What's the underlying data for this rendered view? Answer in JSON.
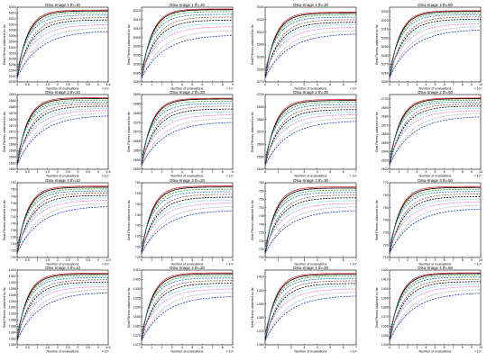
{
  "figure": {
    "ylabel": "Best Fitness obtained so far",
    "xlabel": "Number of evaluations",
    "x_exponent": "× 10⁴",
    "series_colors": [
      "#d62728",
      "#000000",
      "#2ca02c",
      "#1f77b4",
      "#8c564b",
      "#000000",
      "#17becf",
      "#e377c2",
      "#7f7f7f",
      "#1f3fbf"
    ],
    "series_styles": [
      "solid",
      "solid",
      "dash",
      "dash",
      "dash",
      "dash",
      "dot",
      "dash",
      "dot",
      "dash"
    ]
  },
  "chart_data": [
    {
      "type": "line",
      "title": "Otsu-Image 1 th=10",
      "xlim": [
        0,
        4.5
      ],
      "ylim": [
        5290,
        5316
      ],
      "xticks": [
        0,
        0.5,
        1,
        1.5,
        2,
        2.5,
        3,
        3.5,
        4,
        4.5
      ],
      "xticklabels": [
        "0",
        "0.5",
        "1",
        "1.5",
        "2",
        "2.5",
        "3",
        "3.5",
        "4",
        "4.5"
      ],
      "yticks": [
        5290,
        5292,
        5294,
        5296,
        5298,
        5300,
        5302,
        5304,
        5306,
        5308,
        5310,
        5312,
        5314,
        5316
      ],
      "yticklabels": [
        "5290",
        "5292",
        "5294",
        "5296",
        "5298",
        "5300",
        "5302",
        "5304",
        "5306",
        "5308",
        "5310",
        "5312",
        "5314",
        "5316"
      ],
      "final": [
        5315.0,
        5314.7,
        5314.1,
        5313.3,
        5312.4,
        5311.6,
        5310.8,
        5310.0,
        5309.0,
        5307.8
      ]
    },
    {
      "type": "line",
      "title": "Otsu-Image 1 th=20",
      "xlim": [
        0,
        9
      ],
      "ylim": [
        5280,
        5322
      ],
      "xticks": [
        0,
        1,
        2,
        3,
        4,
        5,
        6,
        7,
        8,
        9
      ],
      "xticklabels": [
        "0",
        "1",
        "2",
        "3",
        "4",
        "5",
        "6",
        "7",
        "8",
        "9"
      ],
      "yticks": [
        5280,
        5285,
        5290,
        5295,
        5300,
        5305,
        5310,
        5315,
        5320
      ],
      "yticklabels": [
        "5280",
        "5285",
        "5290",
        "5295",
        "5300",
        "5305",
        "5310",
        "5315",
        "5320"
      ],
      "final": [
        5321.0,
        5320.6,
        5319.5,
        5318.0,
        5316.5,
        5314.8,
        5313.0,
        5311.2,
        5309.0,
        5306.5
      ]
    },
    {
      "type": "line",
      "title": "Otsu-Image 1 th=30",
      "xlim": [
        0,
        7
      ],
      "ylim": [
        5270,
        5330
      ],
      "xticks": [
        0,
        1,
        2,
        3,
        4,
        5,
        6,
        7
      ],
      "xticklabels": [
        "0",
        "1",
        "2",
        "3",
        "4",
        "5",
        "6",
        "7"
      ],
      "yticks": [
        5270,
        5280,
        5290,
        5300,
        5310,
        5320,
        5330
      ],
      "yticklabels": [
        "5270",
        "5280",
        "5290",
        "5300",
        "5310",
        "5320",
        "5330"
      ],
      "final": [
        5326.0,
        5325.2,
        5323.8,
        5322.0,
        5320.0,
        5318.0,
        5316.2,
        5314.0,
        5311.5,
        5309.0
      ]
    },
    {
      "type": "line",
      "title": "Otsu-Image 1 th=50",
      "xlim": [
        0,
        10
      ],
      "ylim": [
        5250,
        5335
      ],
      "xticks": [
        0,
        1,
        2,
        3,
        4,
        5,
        6,
        7,
        8,
        9,
        10
      ],
      "xticklabels": [
        "0",
        "1",
        "2",
        "3",
        "4",
        "5",
        "6",
        "7",
        "8",
        "9",
        "10"
      ],
      "yticks": [
        5250,
        5260,
        5270,
        5280,
        5290,
        5300,
        5310,
        5320,
        5330
      ],
      "yticklabels": [
        "5250",
        "5260",
        "5270",
        "5280",
        "5290",
        "5300",
        "5310",
        "5320",
        "5330"
      ],
      "final": [
        5331.0,
        5330.2,
        5328.5,
        5326.5,
        5324.0,
        5321.5,
        5319.0,
        5316.5,
        5313.5,
        5310.0
      ]
    },
    {
      "type": "line",
      "title": "Otsu-Image 2 th=10",
      "xlim": [
        0,
        4.5
      ],
      "ylim": [
        2660,
        2684
      ],
      "xticks": [
        0,
        0.5,
        1,
        1.5,
        2,
        2.5,
        3,
        3.5,
        4,
        4.5
      ],
      "xticklabels": [
        "0",
        "0.5",
        "1",
        "1.5",
        "2",
        "2.5",
        "3",
        "3.5",
        "4",
        "4.5"
      ],
      "yticks": [
        2660,
        2662,
        2664,
        2666,
        2668,
        2670,
        2672,
        2674,
        2676,
        2678,
        2680,
        2682,
        2684
      ],
      "yticklabels": [
        "2660",
        "2662",
        "2664",
        "2666",
        "2668",
        "2670",
        "2672",
        "2674",
        "2676",
        "2678",
        "2680",
        "2682",
        "2684"
      ],
      "final": [
        2683.0,
        2682.7,
        2682.2,
        2681.6,
        2681.0,
        2680.3,
        2679.6,
        2679.0,
        2678.2,
        2677.4
      ]
    },
    {
      "type": "line",
      "title": "Otsu-Image 2 th=20",
      "xlim": [
        0,
        9
      ],
      "ylim": [
        2650,
        2690
      ],
      "xticks": [
        0,
        1,
        2,
        3,
        4,
        5,
        6,
        7,
        8,
        9
      ],
      "xticklabels": [
        "0",
        "1",
        "2",
        "3",
        "4",
        "5",
        "6",
        "7",
        "8",
        "9"
      ],
      "yticks": [
        2650,
        2655,
        2660,
        2665,
        2670,
        2675,
        2680,
        2685,
        2690
      ],
      "yticklabels": [
        "2650",
        "2655",
        "2660",
        "2665",
        "2670",
        "2675",
        "2680",
        "2685",
        "2690"
      ],
      "final": [
        2688.0,
        2687.6,
        2686.5,
        2685.2,
        2683.8,
        2682.3,
        2680.8,
        2679.3,
        2677.6,
        2675.5
      ]
    },
    {
      "type": "line",
      "title": "Otsu-Image 2 th=30",
      "xlim": [
        0,
        7
      ],
      "ylim": [
        2640,
        2700
      ],
      "xticks": [
        0,
        1,
        2,
        3,
        4,
        5,
        6,
        7
      ],
      "xticklabels": [
        "0",
        "1",
        "2",
        "3",
        "4",
        "5",
        "6",
        "7"
      ],
      "yticks": [
        2640,
        2650,
        2660,
        2670,
        2680,
        2690,
        2700
      ],
      "yticklabels": [
        "2640",
        "2650",
        "2660",
        "2670",
        "2680",
        "2690",
        "2700"
      ],
      "final": [
        2696.0,
        2695.2,
        2693.8,
        2692.0,
        2690.0,
        2688.0,
        2686.0,
        2684.0,
        2681.5,
        2679.0
      ]
    },
    {
      "type": "line",
      "title": "Otsu-Image 2 th=50",
      "xlim": [
        0,
        10
      ],
      "ylim": [
        2620,
        2705
      ],
      "xticks": [
        0,
        1,
        2,
        3,
        4,
        5,
        6,
        7,
        8,
        9,
        10
      ],
      "xticklabels": [
        "0",
        "1",
        "2",
        "3",
        "4",
        "5",
        "6",
        "7",
        "8",
        "9",
        "10"
      ],
      "yticks": [
        2620,
        2630,
        2640,
        2650,
        2660,
        2670,
        2680,
        2690,
        2700
      ],
      "yticklabels": [
        "2620",
        "2630",
        "2640",
        "2650",
        "2660",
        "2670",
        "2680",
        "2690",
        "2700"
      ],
      "final": [
        2701.0,
        2700.2,
        2698.6,
        2696.6,
        2694.3,
        2692.0,
        2689.5,
        2687.0,
        2684.0,
        2680.5
      ]
    },
    {
      "type": "line",
      "title": "Otsu-Image 3 th=10",
      "xlim": [
        0,
        4.5
      ],
      "ylim": [
        730,
        752
      ],
      "xticks": [
        0,
        0.5,
        1,
        1.5,
        2,
        2.5,
        3,
        3.5,
        4,
        4.5
      ],
      "xticklabels": [
        "0",
        "0.5",
        "1",
        "1.5",
        "2",
        "2.5",
        "3",
        "3.5",
        "4",
        "4.5"
      ],
      "yticks": [
        730,
        732,
        734,
        736,
        738,
        740,
        742,
        744,
        746,
        748,
        750,
        752
      ],
      "yticklabels": [
        "730",
        "732",
        "734",
        "736",
        "738",
        "740",
        "742",
        "744",
        "746",
        "748",
        "750",
        "752"
      ],
      "final": [
        751.0,
        750.7,
        750.2,
        749.6,
        749.0,
        748.3,
        747.6,
        746.9,
        746.1,
        745.2
      ]
    },
    {
      "type": "line",
      "title": "Otsu-Image 3 th=20",
      "xlim": [
        0,
        9
      ],
      "ylim": [
        725,
        760
      ],
      "xticks": [
        0,
        1,
        2,
        3,
        4,
        5,
        6,
        7,
        8,
        9
      ],
      "xticklabels": [
        "0",
        "1",
        "2",
        "3",
        "4",
        "5",
        "6",
        "7",
        "8",
        "9"
      ],
      "yticks": [
        725,
        730,
        735,
        740,
        745,
        750,
        755,
        760
      ],
      "yticklabels": [
        "725",
        "730",
        "735",
        "740",
        "745",
        "750",
        "755",
        "760"
      ],
      "final": [
        758.5,
        758.0,
        757.0,
        755.8,
        754.6,
        753.3,
        752.0,
        750.6,
        749.0,
        747.2
      ]
    },
    {
      "type": "line",
      "title": "Otsu-Image 3 th=30",
      "xlim": [
        0,
        7
      ],
      "ylim": [
        720,
        765
      ],
      "xticks": [
        0,
        1,
        2,
        3,
        4,
        5,
        6,
        7
      ],
      "xticklabels": [
        "0",
        "1",
        "2",
        "3",
        "4",
        "5",
        "6",
        "7"
      ],
      "yticks": [
        720,
        725,
        730,
        735,
        740,
        745,
        750,
        755,
        760,
        765
      ],
      "yticklabels": [
        "720",
        "725",
        "730",
        "735",
        "740",
        "745",
        "750",
        "755",
        "760",
        "765"
      ],
      "final": [
        762.5,
        761.8,
        760.6,
        759.2,
        757.6,
        756.0,
        754.4,
        752.7,
        750.8,
        748.6
      ]
    },
    {
      "type": "line",
      "title": "Otsu-Image 3 th=50",
      "xlim": [
        0,
        10
      ],
      "ylim": [
        710,
        770
      ],
      "xticks": [
        0,
        1,
        2,
        3,
        4,
        5,
        6,
        7,
        8,
        9,
        10
      ],
      "xticklabels": [
        "0",
        "1",
        "2",
        "3",
        "4",
        "5",
        "6",
        "7",
        "8",
        "9",
        "10"
      ],
      "yticks": [
        710,
        720,
        730,
        740,
        750,
        760,
        770
      ],
      "yticklabels": [
        "710",
        "720",
        "730",
        "740",
        "750",
        "760",
        "770"
      ],
      "final": [
        767.0,
        766.2,
        764.8,
        763.0,
        761.0,
        759.0,
        757.0,
        754.8,
        752.3,
        749.5
      ]
    },
    {
      "type": "line",
      "title": "Otsu-Image 4 th=10",
      "xlim": [
        0,
        4.5
      ],
      "ylim": [
        1380,
        1404
      ],
      "xticks": [
        0,
        0.5,
        1,
        1.5,
        2,
        2.5,
        3,
        3.5,
        4,
        4.5
      ],
      "xticklabels": [
        "0",
        "0.5",
        "1",
        "1.5",
        "2",
        "2.5",
        "3",
        "3.5",
        "4",
        "4.5"
      ],
      "yticks": [
        1380,
        1382,
        1384,
        1386,
        1388,
        1390,
        1392,
        1394,
        1396,
        1398,
        1400,
        1402,
        1404
      ],
      "yticklabels": [
        "1380",
        "1382",
        "1384",
        "1386",
        "1388",
        "1390",
        "1392",
        "1394",
        "1396",
        "1398",
        "1400",
        "1402",
        "1404"
      ],
      "final": [
        1403.0,
        1402.7,
        1402.2,
        1401.6,
        1400.9,
        1400.2,
        1399.5,
        1398.8,
        1398.0,
        1397.0
      ]
    },
    {
      "type": "line",
      "title": "Otsu-Image 4 th=20",
      "xlim": [
        0,
        9
      ],
      "ylim": [
        1370,
        1410
      ],
      "xticks": [
        0,
        1,
        2,
        3,
        4,
        5,
        6,
        7,
        8,
        9
      ],
      "xticklabels": [
        "0",
        "1",
        "2",
        "3",
        "4",
        "5",
        "6",
        "7",
        "8",
        "9"
      ],
      "yticks": [
        1370,
        1375,
        1380,
        1385,
        1390,
        1395,
        1400,
        1405,
        1410
      ],
      "yticklabels": [
        "1370",
        "1375",
        "1380",
        "1385",
        "1390",
        "1395",
        "1400",
        "1405",
        "1410"
      ],
      "final": [
        1408.5,
        1408.0,
        1407.0,
        1405.8,
        1404.4,
        1403.0,
        1401.5,
        1400.0,
        1398.3,
        1396.2
      ]
    },
    {
      "type": "line",
      "title": "Otsu-Image 4 th=30",
      "xlim": [
        0,
        7
      ],
      "ylim": [
        1360,
        1415
      ],
      "xticks": [
        0,
        1,
        2,
        3,
        4,
        5,
        6,
        7
      ],
      "xticklabels": [
        "0",
        "1",
        "2",
        "3",
        "4",
        "5",
        "6",
        "7"
      ],
      "yticks": [
        1360,
        1370,
        1380,
        1390,
        1400,
        1410
      ],
      "yticklabels": [
        "1360",
        "1370",
        "1380",
        "1390",
        "1400",
        "1410"
      ],
      "final": [
        1412.5,
        1411.8,
        1410.5,
        1408.9,
        1407.1,
        1405.2,
        1403.3,
        1401.3,
        1399.0,
        1396.4
      ]
    },
    {
      "type": "line",
      "title": "Otsu-Image 4 th=50",
      "xlim": [
        0,
        10
      ],
      "ylim": [
        1340,
        1420
      ],
      "xticks": [
        0,
        1,
        2,
        3,
        4,
        5,
        6,
        7,
        8,
        9,
        10
      ],
      "xticklabels": [
        "0",
        "1",
        "2",
        "3",
        "4",
        "5",
        "6",
        "7",
        "8",
        "9",
        "10"
      ],
      "yticks": [
        1340,
        1350,
        1360,
        1370,
        1380,
        1390,
        1400,
        1410,
        1420
      ],
      "yticklabels": [
        "1340",
        "1350",
        "1360",
        "1370",
        "1380",
        "1390",
        "1400",
        "1410",
        "1420"
      ],
      "final": [
        1417.0,
        1416.2,
        1414.5,
        1412.5,
        1410.2,
        1407.8,
        1405.3,
        1402.7,
        1399.7,
        1396.0
      ]
    }
  ]
}
